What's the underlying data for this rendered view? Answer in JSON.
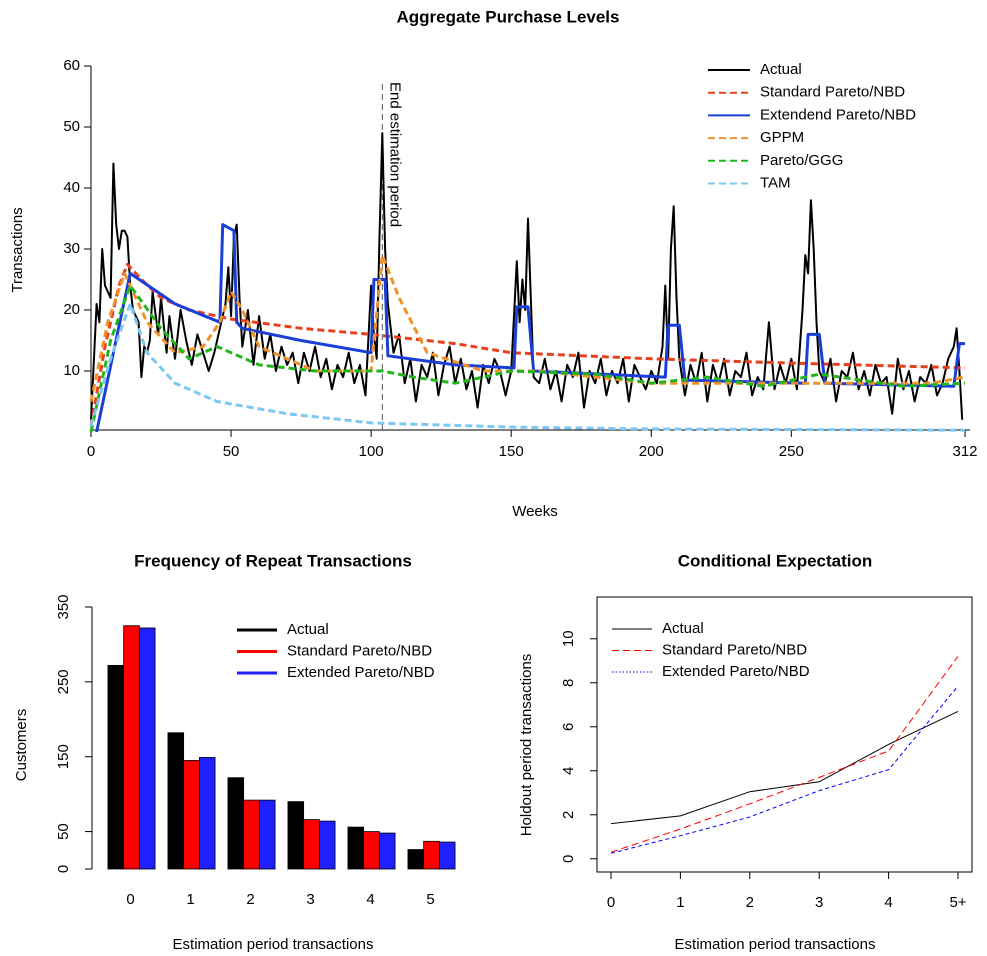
{
  "chart_data": [
    {
      "type": "line",
      "title": "Aggregate Purchase Levels",
      "x_label": "Weeks",
      "y_label": "Transactions",
      "xlim": [
        0,
        312
      ],
      "ylim": [
        0,
        60
      ],
      "xticks": [
        0,
        50,
        100,
        150,
        200,
        250,
        312
      ],
      "yticks": [
        10,
        20,
        30,
        40,
        50,
        60
      ],
      "legend": "top-right",
      "annotations": [
        {
          "text": "End estimation period",
          "x": 104
        }
      ],
      "series": [
        {
          "name": "Actual",
          "color": "#000000",
          "linestyle": "solid",
          "x": [
            0,
            2,
            3,
            4,
            5,
            7,
            8,
            9,
            10,
            11,
            12,
            13,
            14,
            15,
            17,
            18,
            19,
            20,
            21,
            22,
            24,
            25,
            27,
            28,
            30,
            32,
            34,
            36,
            38,
            40,
            42,
            44,
            46,
            48,
            49,
            50,
            51,
            52,
            53,
            54,
            56,
            58,
            60,
            62,
            64,
            66,
            68,
            70,
            72,
            74,
            76,
            78,
            80,
            82,
            84,
            86,
            88,
            90,
            92,
            94,
            96,
            98,
            100,
            101,
            102,
            103,
            104,
            105,
            106,
            108,
            110,
            112,
            114,
            116,
            118,
            120,
            122,
            124,
            126,
            128,
            130,
            132,
            134,
            136,
            138,
            140,
            142,
            144,
            146,
            148,
            150,
            152,
            153,
            154,
            155,
            156,
            157,
            158,
            160,
            162,
            164,
            166,
            168,
            170,
            172,
            174,
            176,
            178,
            180,
            182,
            184,
            186,
            188,
            190,
            192,
            194,
            196,
            198,
            200,
            202,
            204,
            205,
            206,
            207,
            208,
            209,
            210,
            212,
            214,
            216,
            218,
            220,
            222,
            224,
            226,
            228,
            230,
            232,
            234,
            236,
            238,
            240,
            242,
            244,
            246,
            248,
            250,
            252,
            254,
            255,
            256,
            257,
            258,
            259,
            260,
            262,
            264,
            266,
            268,
            270,
            272,
            274,
            276,
            278,
            280,
            282,
            284,
            286,
            288,
            290,
            292,
            294,
            296,
            298,
            300,
            302,
            304,
            306,
            308,
            309,
            310,
            311
          ],
          "values": [
            2,
            21,
            18,
            30,
            24,
            22,
            44,
            34,
            30,
            33,
            33,
            32,
            24,
            20,
            18,
            9,
            14,
            13,
            15,
            23,
            16,
            22,
            13,
            19,
            12,
            20,
            15,
            11,
            16,
            13,
            10,
            13,
            17,
            21,
            27,
            19,
            32,
            34,
            22,
            14,
            20,
            11,
            19,
            12,
            16,
            10,
            14,
            11,
            13,
            8,
            13,
            10,
            14,
            9,
            12,
            7,
            11,
            9,
            13,
            8,
            11,
            6,
            24,
            16,
            12,
            32,
            49,
            30,
            21,
            13,
            16,
            8,
            12,
            5,
            11,
            9,
            13,
            6,
            11,
            14,
            8,
            12,
            7,
            10,
            4,
            11,
            8,
            12,
            10,
            6,
            10,
            28,
            18,
            25,
            20,
            35,
            22,
            9,
            8,
            12,
            7,
            10,
            5,
            11,
            9,
            13,
            4,
            10,
            8,
            12,
            6,
            10,
            8,
            12,
            5,
            11,
            9,
            7,
            10,
            8,
            14,
            24,
            12,
            30,
            37,
            22,
            12,
            6,
            11,
            8,
            13,
            5,
            11,
            8,
            12,
            6,
            10,
            9,
            13,
            6,
            9,
            7,
            18,
            7,
            11,
            8,
            12,
            7,
            20,
            29,
            26,
            38,
            30,
            18,
            10,
            8,
            12,
            5,
            10,
            9,
            13,
            7,
            10,
            6,
            11,
            8,
            9,
            3,
            12,
            7,
            10,
            5,
            9,
            8,
            11,
            6,
            8,
            12,
            14,
            17,
            10,
            2
          ]
        },
        {
          "name": "Standard Pareto/NBD",
          "color": "#e8401c",
          "linestyle": "dashed",
          "x": [
            0,
            5,
            10,
            13,
            18,
            25,
            35,
            50,
            75,
            100,
            130,
            150,
            200,
            250,
            312
          ],
          "values": [
            1,
            14,
            24,
            27.5,
            25,
            22,
            20,
            18.5,
            17,
            16,
            14.5,
            13,
            12,
            11.3,
            10.5
          ]
        },
        {
          "name": "Extendend Pareto/NBD",
          "color": "#1a3fd6",
          "linestyle": "solid",
          "x": [
            2,
            14,
            30,
            46,
            47,
            51,
            52,
            54,
            75,
            100,
            101,
            105,
            106,
            130,
            151,
            152,
            156,
            158,
            205,
            206,
            210,
            212,
            255,
            256,
            260,
            262,
            308,
            310,
            312
          ],
          "values": [
            0,
            26,
            21,
            18,
            34,
            33,
            18,
            17,
            15,
            13,
            25,
            25,
            12.5,
            11,
            10.5,
            20.5,
            20.5,
            10,
            9,
            17.5,
            17.5,
            8.5,
            8,
            16,
            16,
            8,
            7.5,
            14.5,
            14.5
          ]
        },
        {
          "name": "GPPM",
          "color": "#f0922a",
          "linestyle": "dashed",
          "x": [
            0,
            6,
            12,
            20,
            30,
            40,
            46,
            50,
            54,
            60,
            80,
            100,
            104,
            110,
            120,
            140,
            160,
            180,
            200,
            220,
            250,
            280,
            300,
            312
          ],
          "values": [
            5,
            18,
            26,
            18,
            13,
            14,
            18,
            23,
            20,
            14,
            10,
            10,
            29,
            22,
            13,
            10,
            10,
            9,
            8,
            8,
            8,
            8,
            8,
            9
          ]
        },
        {
          "name": "Pareto/GGG",
          "color": "#22b51e",
          "linestyle": "dashed",
          "x": [
            0,
            7,
            14,
            25,
            35,
            45,
            60,
            80,
            104,
            115,
            130,
            150,
            180,
            200,
            220,
            240,
            260,
            290,
            312
          ],
          "values": [
            0,
            15,
            24,
            17,
            12,
            14,
            11,
            10,
            10,
            9,
            8,
            10,
            9.5,
            8,
            9,
            7.5,
            9.5,
            7.5,
            8
          ]
        },
        {
          "name": "TAM",
          "color": "#7cc8f2",
          "linestyle": "dashed",
          "x": [
            0,
            7,
            14,
            20,
            30,
            45,
            70,
            100,
            150,
            200,
            312
          ],
          "values": [
            1,
            12,
            21,
            13,
            8,
            5,
            3,
            1.5,
            0.8,
            0.5,
            0.3
          ]
        }
      ]
    },
    {
      "type": "grouped-bar",
      "title": "Frequency of Repeat Transactions",
      "x_label": "Estimation period transactions",
      "y_label": "Customers",
      "categories": [
        "0",
        "1",
        "2",
        "3",
        "4",
        "5"
      ],
      "ylim": [
        0,
        350
      ],
      "yticks": [
        0,
        50,
        150,
        250,
        350
      ],
      "legend": "top-right",
      "series": [
        {
          "name": "Actual",
          "color": "#000000",
          "values": [
            272,
            182,
            122,
            90,
            56,
            26
          ]
        },
        {
          "name": "Standard Pareto/NBD",
          "color": "#ff0000",
          "values": [
            325,
            145,
            92,
            66,
            50,
            37
          ]
        },
        {
          "name": "Extended Pareto/NBD",
          "color": "#1f1fff",
          "values": [
            322,
            149,
            92,
            64,
            48,
            36
          ]
        }
      ]
    },
    {
      "type": "category-line",
      "title": "Conditional Expectation",
      "x_label": "Estimation period transactions",
      "y_label": "Holdout period transactions",
      "categories": [
        "0",
        "1",
        "2",
        "3",
        "4",
        "5+"
      ],
      "ylim": [
        -0.6,
        11.9
      ],
      "yticks": [
        0,
        2,
        4,
        6,
        8,
        10
      ],
      "legend": "top-left",
      "series": [
        {
          "name": "Actual",
          "color": "#000000",
          "linestyle": "solid",
          "values": [
            1.6,
            1.95,
            3.05,
            3.5,
            5.2,
            6.7
          ]
        },
        {
          "name": "Standard Pareto/NBD",
          "color": "#ff0000",
          "linestyle": "dashed",
          "values": [
            0.3,
            1.35,
            2.5,
            3.7,
            4.9,
            9.2
          ]
        },
        {
          "name": "Extended Pareto/NBD",
          "color": "#0000ff",
          "linestyle": "dotted",
          "values": [
            0.25,
            1.05,
            1.9,
            3.1,
            4.05,
            7.85
          ]
        }
      ]
    }
  ]
}
